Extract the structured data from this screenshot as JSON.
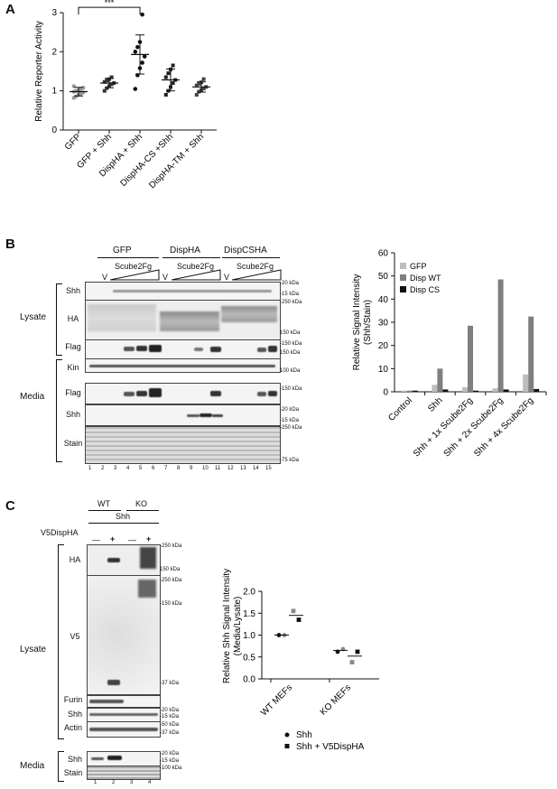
{
  "panel_a": {
    "letter": "A",
    "significance": "***",
    "chart_data": {
      "type": "scatter",
      "ylabel": "Relative Reporter Activity",
      "xlabel": "",
      "ylim": [
        0,
        3
      ],
      "yticks": [
        0,
        1,
        2,
        3
      ],
      "categories": [
        "GFP",
        "GFP + Shh",
        "DispHA + Shh",
        "DispHA-CS +Shh",
        "DispHA-TM + Shh"
      ],
      "points": [
        [
          0.82,
          0.86,
          0.9,
          0.93,
          0.96,
          0.98,
          1.0,
          1.02,
          1.05,
          1.08,
          1.12
        ],
        [
          1.0,
          1.07,
          1.12,
          1.17,
          1.2,
          1.23,
          1.27,
          1.3,
          1.35
        ],
        [
          1.05,
          1.4,
          1.58,
          1.72,
          1.88,
          2.0,
          2.12,
          2.25,
          2.95
        ],
        [
          0.9,
          1.0,
          1.1,
          1.2,
          1.28,
          1.35,
          1.45,
          1.55,
          1.65
        ],
        [
          0.9,
          0.98,
          1.02,
          1.06,
          1.1,
          1.14,
          1.18,
          1.22,
          1.3
        ]
      ],
      "means": [
        0.98,
        1.2,
        1.93,
        1.28,
        1.1
      ],
      "sd": [
        0.11,
        0.12,
        0.5,
        0.28,
        0.13
      ]
    }
  },
  "panel_b": {
    "letter": "B",
    "groups": [
      "GFP",
      "DispHA",
      "DispCSHA"
    ],
    "sub_v": "V",
    "sub_scube": "Scube2Fg",
    "side_labels": {
      "lysate": "Lysate",
      "media": "Media"
    },
    "rows": [
      "Shh",
      "HA",
      "Flag",
      "Kin",
      "Flag",
      "Shh",
      "Stain"
    ],
    "markers": [
      "-20 kDa",
      "-15 kDa",
      "-250 kDa",
      "150 kDa",
      "-150 kDa",
      "150 kDa",
      "100 kDa",
      "-150 kDa",
      "-20 kDa",
      "-15 kDa",
      "-250 kDa",
      "-75 kDa"
    ],
    "lanes": [
      "1",
      "2",
      "3",
      "4",
      "5",
      "6",
      "7",
      "8",
      "9",
      "10",
      "11",
      "12",
      "13",
      "14",
      "15"
    ],
    "chart_data": {
      "type": "bar",
      "ylabel": "Relative Signal Intensity (Shh/Stain)",
      "ylabel_line1": "Relative Signal Intensity",
      "ylabel_line2": "(Shh/Stain)",
      "ylim": [
        0,
        60
      ],
      "yticks": [
        0,
        10,
        20,
        30,
        40,
        50,
        60
      ],
      "categories": [
        "Control",
        "Shh",
        "Shh + 1x Scube2Fg",
        "Shh + 2x Scube2Fg",
        "Shh + 4x Scube2Fg"
      ],
      "legend_position": "top-left",
      "series": [
        {
          "name": "GFP",
          "color": "#bdbdbd",
          "values": [
            0.5,
            3,
            2,
            1.5,
            7.5
          ]
        },
        {
          "name": "Disp WT",
          "color": "#7f7f7f",
          "values": [
            0.5,
            10,
            28.5,
            48.5,
            32.5
          ]
        },
        {
          "name": "Disp CS",
          "color": "#111111",
          "values": [
            0.5,
            1,
            0.5,
            1,
            1.2
          ]
        }
      ]
    }
  },
  "panel_c": {
    "letter": "C",
    "wt": "WT",
    "ko": "KO",
    "shh": "Shh",
    "v5label": "V5DispHA",
    "signs": [
      "—",
      "+",
      "—",
      "+"
    ],
    "side_labels": {
      "lysate": "Lysate",
      "media": "Media"
    },
    "rows": [
      "HA",
      "V5",
      "Furin",
      "Shh",
      "Actin",
      "Shh",
      "Stain"
    ],
    "markers": [
      "-250 kDa",
      "150 kDa",
      "-250 kDa",
      "-150 kDa",
      "-37 kDa",
      "-20 kDa",
      "-15 kDa",
      "-50 kDa",
      "-37 kDa",
      "-20 kDa",
      "-15 kDa",
      "-100 kDa"
    ],
    "lanes": [
      "1",
      "2",
      "3",
      "4"
    ],
    "chart_data": {
      "type": "scatter",
      "ylabel": "Relative Shh Signal Intensity (Media/Lysate)",
      "ylabel_line1": "Relative Shh Signal Intensity",
      "ylabel_line2": "(Media/Lysate)",
      "ylim": [
        0,
        2.0
      ],
      "yticks": [
        "0.0",
        "0.5",
        "1.0",
        "1.5",
        "2.0"
      ],
      "categories": [
        "WT MEFs",
        "KO MEFs"
      ],
      "series": [
        {
          "name": "Shh",
          "marker": "circle",
          "values": [
            [
              1.0,
              1.0
            ],
            [
              0.62,
              0.68
            ]
          ],
          "means": [
            1.0,
            0.65
          ]
        },
        {
          "name": "Shh + V5DispHA",
          "marker": "square",
          "values": [
            [
              1.55,
              1.35
            ],
            [
              0.38,
              0.62
            ]
          ],
          "means": [
            1.45,
            0.52
          ]
        }
      ]
    }
  }
}
